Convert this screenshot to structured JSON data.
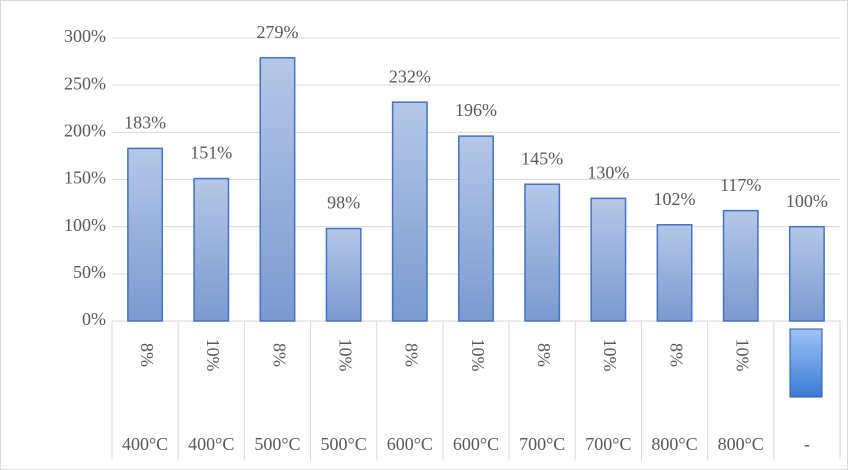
{
  "chart_data": {
    "type": "bar",
    "categories": [
      "8%",
      "10%",
      "8%",
      "10%",
      "8%",
      "10%",
      "8%",
      "10%",
      "8%",
      "10%",
      null
    ],
    "category_groups": [
      "400°C",
      "400°C",
      "500°C",
      "500°C",
      "600°C",
      "600°C",
      "700°C",
      "700°C",
      "800°C",
      "800°C",
      "-"
    ],
    "values": [
      183,
      151,
      279,
      98,
      232,
      196,
      145,
      130,
      102,
      117,
      100
    ],
    "value_labels": [
      "183%",
      "151%",
      "279%",
      "98%",
      "232%",
      "196%",
      "145%",
      "130%",
      "102%",
      "117%",
      "100%"
    ],
    "color": "#4472c4",
    "ylim": [
      0,
      300
    ],
    "yticks": [
      {
        "value": 0,
        "label": "0%"
      },
      {
        "value": 50,
        "label": "50%"
      },
      {
        "value": 100,
        "label": "100%"
      },
      {
        "value": 150,
        "label": "150%"
      },
      {
        "value": 200,
        "label": "200%"
      },
      {
        "value": 250,
        "label": "250%"
      },
      {
        "value": 300,
        "label": "300%"
      }
    ],
    "grid": true
  }
}
